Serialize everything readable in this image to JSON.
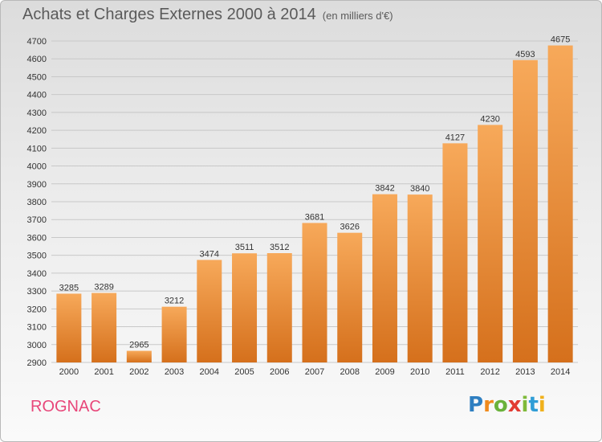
{
  "header": {
    "title": "Achats et Charges Externes 2000 à 2014",
    "subtitle": "(en milliers d'€)"
  },
  "footer": {
    "place": "ROGNAC",
    "brand_letters": [
      "P",
      "r",
      "o",
      "x",
      "i",
      "t",
      "i"
    ]
  },
  "colors": {
    "bar_light": "#f7a95a",
    "bar_dark": "#d5701c",
    "grid": "#c8c8c8",
    "axis_text": "#333333",
    "place": "#e8477a"
  },
  "chart_data": {
    "type": "bar",
    "title": "Achats et Charges Externes 2000 à 2014",
    "subtitle": "(en milliers d'€)",
    "categories": [
      "2000",
      "2001",
      "2002",
      "2003",
      "2004",
      "2005",
      "2006",
      "2007",
      "2008",
      "2009",
      "2010",
      "2011",
      "2012",
      "2013",
      "2014"
    ],
    "values": [
      3285,
      3289,
      2965,
      3212,
      3474,
      3511,
      3512,
      3681,
      3626,
      3842,
      3840,
      4127,
      4230,
      4593,
      4675
    ],
    "ylim": [
      2900,
      4700
    ],
    "yticks": [
      2900,
      3000,
      3100,
      3200,
      3300,
      3400,
      3500,
      3600,
      3700,
      3800,
      3900,
      4000,
      4100,
      4200,
      4300,
      4400,
      4500,
      4600,
      4700
    ],
    "grid": true,
    "data_labels": true
  }
}
